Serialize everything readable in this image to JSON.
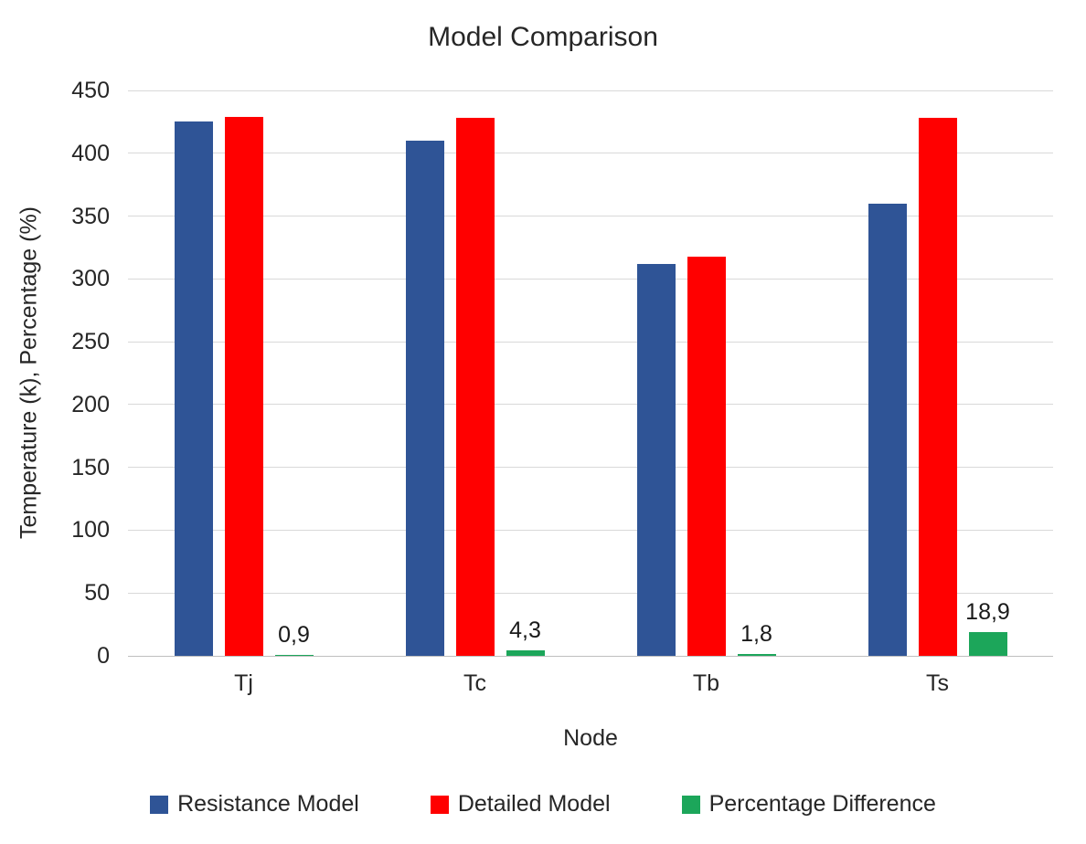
{
  "chart_data": {
    "type": "bar",
    "title": "Model Comparison",
    "xlabel": "Node",
    "ylabel": "Temperature (k), Percentage (%)",
    "categories": [
      "Tj",
      "Tc",
      "Tb",
      "Ts"
    ],
    "series": [
      {
        "name": "Resistance Model",
        "color": "#2f5496",
        "values": [
          425,
          410,
          312,
          360
        ]
      },
      {
        "name": "Detailed Model",
        "color": "#ff0000",
        "values": [
          429,
          428,
          318,
          428
        ]
      },
      {
        "name": "Percentage Difference",
        "color": "#1ca65a",
        "values": [
          0.9,
          4.3,
          1.8,
          18.9
        ],
        "labels": [
          "0,9",
          "4,3",
          "1,8",
          "18,9"
        ]
      }
    ],
    "ylim": [
      0,
      450
    ],
    "yticks": [
      0,
      50,
      100,
      150,
      200,
      250,
      300,
      350,
      400,
      450
    ],
    "grid": true,
    "legend_position": "bottom"
  }
}
